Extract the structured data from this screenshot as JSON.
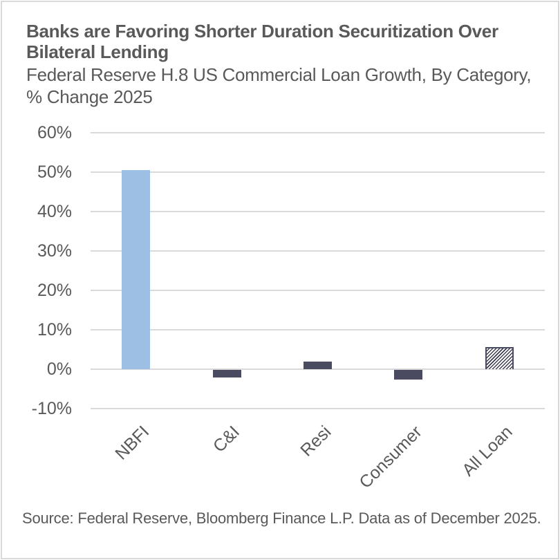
{
  "header": {
    "title": "Banks are Favoring Shorter Duration Securitization Over Bilateral Lending",
    "subtitle": "Federal Reserve H.8 US Commercial Loan Growth, By Category, % Change 2025"
  },
  "footer": {
    "source": "Source: Federal Reserve, Bloomberg Finance L.P. Data as of December 2025."
  },
  "colors": {
    "nbfi_bar": "#9dbfe4",
    "category_bar": "#4a4a60",
    "all_loan_hatch": "#3e3e52",
    "gridline": "#d9d9d9",
    "text": "#595959",
    "frame": "#d9d9d9"
  },
  "chart_data": {
    "type": "bar",
    "title": "Banks are Favoring Shorter Duration Securitization Over Bilateral Lending",
    "subtitle": "Federal Reserve H.8 US Commercial Loan Growth, By Category, % Change 2025",
    "xlabel": "",
    "ylabel": "",
    "categories": [
      "NBFI",
      "C&I",
      "Resi",
      "Consumer",
      "All Loan"
    ],
    "values": [
      50.5,
      -2.0,
      2.0,
      -2.4,
      5.7
    ],
    "unit": "%",
    "ylim": [
      -10,
      60
    ],
    "yticks": [
      60,
      50,
      40,
      30,
      20,
      10,
      0,
      -10
    ],
    "ytick_labels": [
      "60%",
      "50%",
      "40%",
      "30%",
      "20%",
      "10%",
      "0%",
      "-10%"
    ],
    "grid": true,
    "legend": null,
    "bar_styles": [
      "light-blue",
      "dark",
      "dark",
      "dark",
      "hatched"
    ],
    "source": "Source: Federal Reserve, Bloomberg Finance L.P. Data as of December 2025."
  }
}
